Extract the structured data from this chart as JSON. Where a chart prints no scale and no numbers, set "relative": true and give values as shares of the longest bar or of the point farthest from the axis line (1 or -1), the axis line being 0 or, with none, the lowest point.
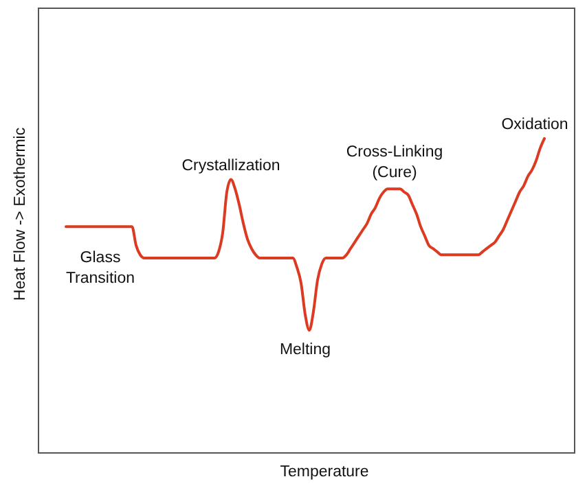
{
  "chart_data": {
    "type": "line",
    "relative": true,
    "xlabel": "Temperature",
    "ylabel": "Heat Flow -> Exothermic",
    "color": "#dc3b22",
    "categories": [
      null,
      null,
      null,
      null,
      null,
      null,
      null,
      null,
      null,
      null,
      null,
      null,
      null,
      null,
      null,
      null,
      null,
      null,
      null,
      null,
      null,
      null,
      null,
      null,
      null,
      null,
      null,
      null,
      null,
      null,
      null,
      null,
      null,
      null,
      null,
      null,
      null,
      null,
      null,
      null,
      null,
      null,
      null,
      null,
      null,
      null,
      null,
      null,
      null,
      null,
      null,
      null,
      null,
      null,
      null,
      null,
      null,
      null,
      null,
      null,
      null,
      null,
      null,
      null,
      null,
      null,
      null,
      null,
      null,
      null,
      null,
      null,
      null,
      null,
      null,
      null,
      null,
      null,
      null,
      null,
      null,
      null,
      null,
      null,
      null,
      null,
      null,
      null,
      null,
      null,
      null,
      null,
      null,
      null,
      null,
      null,
      null,
      null,
      null,
      null,
      null,
      null,
      null,
      null,
      null,
      null,
      null,
      null,
      null,
      null,
      null,
      null,
      null,
      null,
      null,
      null,
      null
    ],
    "values": [
      0.72,
      0.72,
      0.72,
      0.72,
      0.72,
      0.72,
      0.72,
      0.72,
      0.72,
      0.72,
      0.72,
      0.72,
      0.72,
      0.72,
      0.72,
      0.72,
      0.72,
      0.66,
      0.63,
      0.62,
      0.62,
      0.62,
      0.62,
      0.62,
      0.62,
      0.62,
      0.62,
      0.62,
      0.62,
      0.62,
      0.62,
      0.62,
      0.62,
      0.62,
      0.62,
      0.62,
      0.62,
      0.64,
      0.7,
      0.83,
      0.87,
      0.84,
      0.79,
      0.73,
      0.68,
      0.65,
      0.63,
      0.62,
      0.62,
      0.62,
      0.62,
      0.62,
      0.62,
      0.62,
      0.62,
      0.62,
      0.59,
      0.54,
      0.44,
      0.39,
      0.45,
      0.55,
      0.6,
      0.62,
      0.62,
      0.62,
      0.62,
      0.62,
      0.63,
      0.65,
      0.67,
      0.69,
      0.71,
      0.73,
      0.76,
      0.78,
      0.81,
      0.83,
      0.84,
      0.84,
      0.84,
      0.84,
      0.83,
      0.82,
      0.79,
      0.76,
      0.72,
      0.69,
      0.66,
      0.65,
      0.64,
      0.63,
      0.63,
      0.63,
      0.63,
      0.63,
      0.63,
      0.63,
      0.63,
      0.63,
      0.63,
      0.64,
      0.65,
      0.66,
      0.67,
      0.69,
      0.71,
      0.74,
      0.77,
      0.8,
      0.83,
      0.85,
      0.88,
      0.9,
      0.93,
      0.97,
      1
    ],
    "annotations": [
      "Glass\nTransition",
      "Crystallization",
      "Melting",
      "Cross-Linking\n(Cure)",
      "Oxidation"
    ]
  }
}
